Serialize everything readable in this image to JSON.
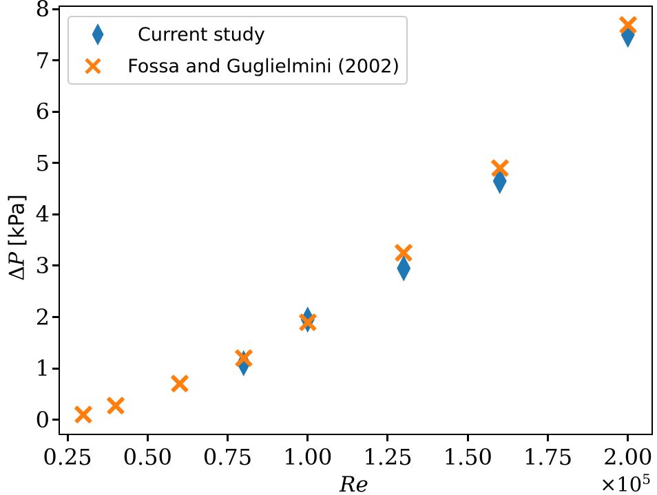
{
  "chart_data": {
    "type": "scatter",
    "title": "",
    "xlabel": "Re",
    "ylabel": "ΔP [kPa]",
    "ylabel_parts": {
      "delta": "Δ",
      "symbol": "P",
      "unit": "[kPa]"
    },
    "x_offset": {
      "base": "×10",
      "exp": "5"
    },
    "xlim": [
      0.222,
      2.078
    ],
    "ylim": [
      -0.3,
      8.07
    ],
    "grid": false,
    "legend_position": "upper left",
    "xticks": {
      "values": [
        0.25,
        0.5,
        0.75,
        1.0,
        1.25,
        1.5,
        1.75,
        2.0
      ],
      "labels": [
        "0.25",
        "0.50",
        "0.75",
        "1.00",
        "1.25",
        "1.50",
        "1.75",
        "2.00"
      ]
    },
    "yticks": {
      "values": [
        0,
        1,
        2,
        3,
        4,
        5,
        6,
        7,
        8
      ],
      "labels": [
        "0",
        "1",
        "2",
        "3",
        "4",
        "5",
        "6",
        "7",
        "8"
      ]
    },
    "series": [
      {
        "name": "Current study",
        "marker": "thin-diamond",
        "color": "#1f77b4",
        "x": [
          0.8,
          1.0,
          1.3,
          1.6,
          2.0
        ],
        "y": [
          1.1,
          1.95,
          2.95,
          4.65,
          7.5
        ]
      },
      {
        "name": "Fossa and Guglielmini (2002)",
        "marker": "x",
        "color": "#ff7f0e",
        "x": [
          0.3,
          0.4,
          0.6,
          0.8,
          1.0,
          1.3,
          1.6,
          2.0
        ],
        "y": [
          0.1,
          0.28,
          0.7,
          1.2,
          1.9,
          3.25,
          4.9,
          7.7
        ]
      }
    ]
  },
  "colors": {
    "background": "#ffffff",
    "spine": "#000000",
    "legend_border": "#cccccc",
    "blue": "#1f77b4",
    "orange": "#ff7f0e"
  }
}
